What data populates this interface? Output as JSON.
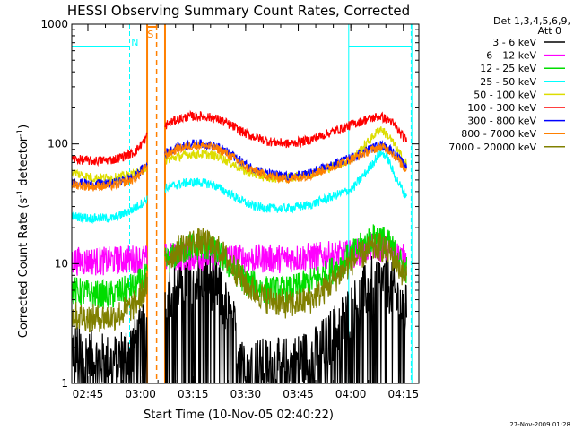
{
  "chart_data": {
    "type": "line",
    "title": "HESSI Observing Summary Count Rates, Corrected",
    "xlabel": "Start Time (10-Nov-05 02:40:22)",
    "ylabel_main": "Corrected Count Rate (s",
    "ylabel_sup1": "-1",
    "ylabel_mid": " detector",
    "ylabel_sup2": "-1",
    "ylabel_end": ")",
    "ylabel": "Corrected Count Rate (s-1 detector-1)",
    "y_scale": "log",
    "ylim": [
      1,
      1000
    ],
    "xlim_minutes": [
      0,
      99
    ],
    "x_ticks": [
      {
        "label": "02:45",
        "minute": 4.6
      },
      {
        "label": "03:00",
        "minute": 19.6
      },
      {
        "label": "03:15",
        "minute": 34.6
      },
      {
        "label": "03:30",
        "minute": 49.6
      },
      {
        "label": "03:45",
        "minute": 64.6
      },
      {
        "label": "04:00",
        "minute": 79.6
      },
      {
        "label": "04:15",
        "minute": 94.6
      }
    ],
    "y_ticks": [
      {
        "label": "1",
        "value": 1
      },
      {
        "label": "10",
        "value": 10
      },
      {
        "label": "100",
        "value": 100
      },
      {
        "label": "1000",
        "value": 1000
      }
    ],
    "legend_header": [
      "Det 1,3,4,5,6,9,",
      "Att 0"
    ],
    "legend_position": "right",
    "series": [
      {
        "name": "3 - 6 keV",
        "color": "#000000",
        "points": [
          [
            0,
            2
          ],
          [
            6,
            1.6
          ],
          [
            12,
            1.5
          ],
          [
            17,
            2
          ],
          [
            20,
            2.6
          ],
          [
            24,
            4
          ],
          [
            28,
            6
          ],
          [
            34,
            8
          ],
          [
            38,
            8
          ],
          [
            42,
            6
          ],
          [
            46,
            3
          ],
          [
            50,
            1.6
          ],
          [
            54,
            1.4
          ],
          [
            60,
            1.4
          ],
          [
            66,
            1.6
          ],
          [
            70,
            1.8
          ],
          [
            74,
            2.5
          ],
          [
            78,
            3.5
          ],
          [
            82,
            5
          ],
          [
            86,
            7
          ],
          [
            90,
            7
          ],
          [
            93,
            5
          ],
          [
            95,
            4
          ]
        ]
      },
      {
        "name": "6 - 12 keV",
        "color": "#ff00ff",
        "points": [
          [
            0,
            10.5
          ],
          [
            10,
            10.5
          ],
          [
            18,
            11
          ],
          [
            22,
            11
          ],
          [
            30,
            11.5
          ],
          [
            40,
            11.5
          ],
          [
            50,
            11
          ],
          [
            60,
            11
          ],
          [
            70,
            11.5
          ],
          [
            80,
            12
          ],
          [
            86,
            14
          ],
          [
            90,
            13
          ],
          [
            95,
            11
          ]
        ]
      },
      {
        "name": "12 - 25 keV",
        "color": "#00dd00",
        "points": [
          [
            0,
            6
          ],
          [
            6,
            5.5
          ],
          [
            12,
            5.5
          ],
          [
            18,
            6.5
          ],
          [
            22,
            8
          ],
          [
            26,
            10
          ],
          [
            30,
            12
          ],
          [
            34,
            14
          ],
          [
            38,
            14
          ],
          [
            42,
            12
          ],
          [
            46,
            9
          ],
          [
            50,
            7
          ],
          [
            56,
            6
          ],
          [
            62,
            6
          ],
          [
            68,
            7
          ],
          [
            72,
            8
          ],
          [
            76,
            9.5
          ],
          [
            80,
            12
          ],
          [
            85,
            16
          ],
          [
            88,
            17
          ],
          [
            91,
            14
          ],
          [
            95,
            9
          ]
        ]
      },
      {
        "name": "25 - 50 keV",
        "color": "#00ffff",
        "points": [
          [
            0,
            25
          ],
          [
            5,
            24
          ],
          [
            12,
            24
          ],
          [
            17,
            28
          ],
          [
            20,
            32
          ],
          [
            24,
            40
          ],
          [
            28,
            44
          ],
          [
            32,
            47
          ],
          [
            36,
            48
          ],
          [
            40,
            46
          ],
          [
            44,
            40
          ],
          [
            48,
            34
          ],
          [
            52,
            30
          ],
          [
            56,
            29
          ],
          [
            62,
            29
          ],
          [
            68,
            31
          ],
          [
            74,
            36
          ],
          [
            80,
            42
          ],
          [
            84,
            58
          ],
          [
            88,
            85
          ],
          [
            90,
            78
          ],
          [
            92,
            55
          ],
          [
            95,
            38
          ]
        ]
      },
      {
        "name": "50 - 100 keV",
        "color": "#dddd00",
        "points": [
          [
            0,
            58
          ],
          [
            6,
            52
          ],
          [
            12,
            52
          ],
          [
            18,
            56
          ],
          [
            22,
            65
          ],
          [
            26,
            72
          ],
          [
            30,
            78
          ],
          [
            34,
            82
          ],
          [
            38,
            82
          ],
          [
            42,
            78
          ],
          [
            46,
            68
          ],
          [
            50,
            58
          ],
          [
            56,
            52
          ],
          [
            62,
            52
          ],
          [
            68,
            56
          ],
          [
            74,
            64
          ],
          [
            80,
            75
          ],
          [
            84,
            100
          ],
          [
            88,
            135
          ],
          [
            91,
            110
          ],
          [
            95,
            70
          ]
        ]
      },
      {
        "name": "100 - 300 keV",
        "color": "#ff0000",
        "points": [
          [
            0,
            75
          ],
          [
            6,
            72
          ],
          [
            12,
            74
          ],
          [
            18,
            85
          ],
          [
            22,
            120
          ],
          [
            26,
            140
          ],
          [
            30,
            160
          ],
          [
            34,
            170
          ],
          [
            38,
            170
          ],
          [
            42,
            160
          ],
          [
            46,
            140
          ],
          [
            50,
            120
          ],
          [
            56,
            105
          ],
          [
            62,
            100
          ],
          [
            68,
            108
          ],
          [
            74,
            125
          ],
          [
            80,
            145
          ],
          [
            84,
            160
          ],
          [
            88,
            170
          ],
          [
            91,
            155
          ],
          [
            95,
            110
          ]
        ]
      },
      {
        "name": "300 - 800 keV",
        "color": "#0000ff",
        "points": [
          [
            0,
            48
          ],
          [
            6,
            46
          ],
          [
            12,
            47
          ],
          [
            18,
            53
          ],
          [
            22,
            70
          ],
          [
            26,
            82
          ],
          [
            30,
            93
          ],
          [
            34,
            100
          ],
          [
            38,
            100
          ],
          [
            42,
            93
          ],
          [
            46,
            80
          ],
          [
            50,
            66
          ],
          [
            56,
            56
          ],
          [
            62,
            53
          ],
          [
            68,
            57
          ],
          [
            74,
            66
          ],
          [
            80,
            77
          ],
          [
            84,
            88
          ],
          [
            88,
            98
          ],
          [
            91,
            90
          ],
          [
            95,
            66
          ]
        ]
      },
      {
        "name": "800 - 7000 keV",
        "color": "#ff8000",
        "points": [
          [
            0,
            46
          ],
          [
            6,
            44
          ],
          [
            12,
            45
          ],
          [
            18,
            51
          ],
          [
            22,
            67
          ],
          [
            26,
            79
          ],
          [
            30,
            90
          ],
          [
            34,
            97
          ],
          [
            38,
            97
          ],
          [
            42,
            90
          ],
          [
            46,
            77
          ],
          [
            50,
            63
          ],
          [
            56,
            54
          ],
          [
            62,
            51
          ],
          [
            68,
            55
          ],
          [
            74,
            64
          ],
          [
            80,
            75
          ],
          [
            84,
            85
          ],
          [
            88,
            95
          ],
          [
            91,
            87
          ],
          [
            95,
            63
          ]
        ]
      },
      {
        "name": "7000 - 20000 keV",
        "color": "#808000",
        "points": [
          [
            0,
            3.7
          ],
          [
            6,
            3.5
          ],
          [
            12,
            3.6
          ],
          [
            18,
            4.5
          ],
          [
            22,
            7
          ],
          [
            26,
            10
          ],
          [
            30,
            13
          ],
          [
            34,
            15
          ],
          [
            38,
            15
          ],
          [
            42,
            13
          ],
          [
            46,
            9.5
          ],
          [
            50,
            6.5
          ],
          [
            56,
            5
          ],
          [
            62,
            4.5
          ],
          [
            68,
            5
          ],
          [
            72,
            6
          ],
          [
            76,
            8
          ],
          [
            80,
            10.5
          ],
          [
            85,
            13
          ],
          [
            88,
            14
          ],
          [
            91,
            12
          ],
          [
            95,
            8
          ]
        ]
      }
    ],
    "annotations": {
      "orbit_lines_cyan_solid_minutes": [
        79,
        97
      ],
      "orbit_lines_cyan_dashed_minutes": [
        16.5,
        96.8
      ],
      "night_flags": [
        {
          "label": "N",
          "color": "#00ffff",
          "minute": 18.5
        }
      ],
      "saa_flags": [
        {
          "label": "S",
          "color": "#ff8000",
          "minute": 23.5
        }
      ],
      "saa_lines_orange_solid_minutes": [
        21.5,
        26.6
      ],
      "saa_lines_orange_dashed_minutes": [
        24.2
      ],
      "top_segments": [
        {
          "color": "#00ffff",
          "from_minute": 0,
          "to_minute": 16.5,
          "value": 650
        },
        {
          "color": "#00ffff",
          "from_minute": 79,
          "to_minute": 97,
          "value": 650
        },
        {
          "color": "#ff8000",
          "from_minute": 21.5,
          "to_minute": 24.2,
          "value": 950
        }
      ]
    }
  },
  "footer": {
    "date": "27-Nov-2009 01:28"
  }
}
